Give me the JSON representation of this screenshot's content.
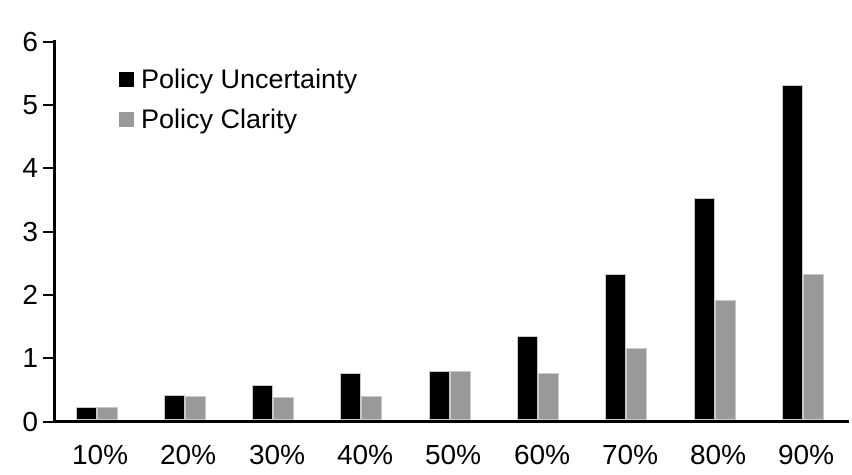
{
  "chart_data": {
    "type": "bar",
    "title": "",
    "xlabel": "",
    "ylabel": "",
    "categories": [
      "10%",
      "20%",
      "30%",
      "40%",
      "50%",
      "60%",
      "70%",
      "80%",
      "90%"
    ],
    "series": [
      {
        "name": "Policy Uncertainty",
        "color": "#000000",
        "values": [
          0.2,
          0.4,
          0.55,
          0.75,
          0.77,
          1.32,
          2.3,
          3.5,
          5.3
        ]
      },
      {
        "name": "Policy Clarity",
        "color": "#999999",
        "values": [
          0.2,
          0.38,
          0.36,
          0.38,
          0.77,
          0.75,
          1.13,
          1.9,
          2.3
        ]
      }
    ],
    "ylim": [
      0,
      6
    ],
    "yticks": [
      0,
      1,
      2,
      3,
      4,
      5,
      6
    ],
    "grid": false,
    "legend_position": "top-left-inside",
    "axis_color": "#000000",
    "background_color": "#ffffff"
  }
}
